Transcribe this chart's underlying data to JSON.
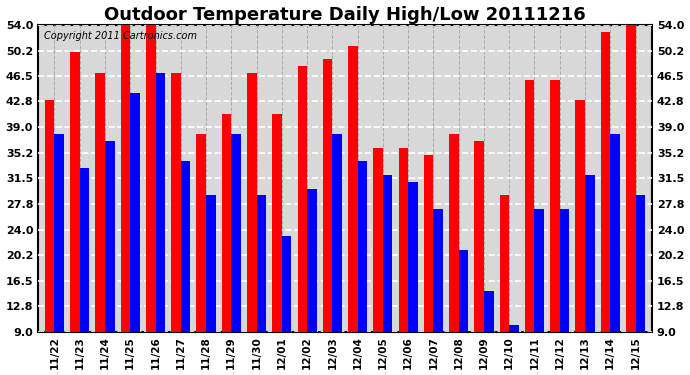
{
  "title": "Outdoor Temperature Daily High/Low 20111216",
  "copyright": "Copyright 2011 Cartronics.com",
  "dates": [
    "11/22",
    "11/23",
    "11/24",
    "11/25",
    "11/26",
    "11/27",
    "11/28",
    "11/29",
    "11/30",
    "12/01",
    "12/02",
    "12/03",
    "12/04",
    "12/05",
    "12/06",
    "12/07",
    "12/08",
    "12/09",
    "12/10",
    "12/11",
    "12/12",
    "12/13",
    "12/14",
    "12/15"
  ],
  "highs": [
    43,
    50,
    47,
    54,
    54,
    47,
    38,
    41,
    47,
    41,
    48,
    49,
    51,
    36,
    36,
    35,
    38,
    37,
    29,
    46,
    46,
    43,
    53,
    54
  ],
  "lows": [
    38,
    33,
    37,
    44,
    47,
    34,
    29,
    38,
    29,
    23,
    30,
    38,
    34,
    32,
    31,
    27,
    21,
    15,
    10,
    27,
    27,
    32,
    38,
    29
  ],
  "high_color": "#ff0000",
  "low_color": "#0000ff",
  "bg_color": "#ffffff",
  "plot_bg_color": "#ffffff",
  "grid_color": "#aaaaaa",
  "yticks": [
    9.0,
    12.8,
    16.5,
    20.2,
    24.0,
    27.8,
    31.5,
    35.2,
    39.0,
    42.8,
    46.5,
    50.2,
    54.0
  ],
  "ylim": [
    9.0,
    54.0
  ],
  "bar_width": 0.38,
  "title_fontsize": 13,
  "copyright_fontsize": 7,
  "figwidth": 6.9,
  "figheight": 3.75,
  "dpi": 100
}
